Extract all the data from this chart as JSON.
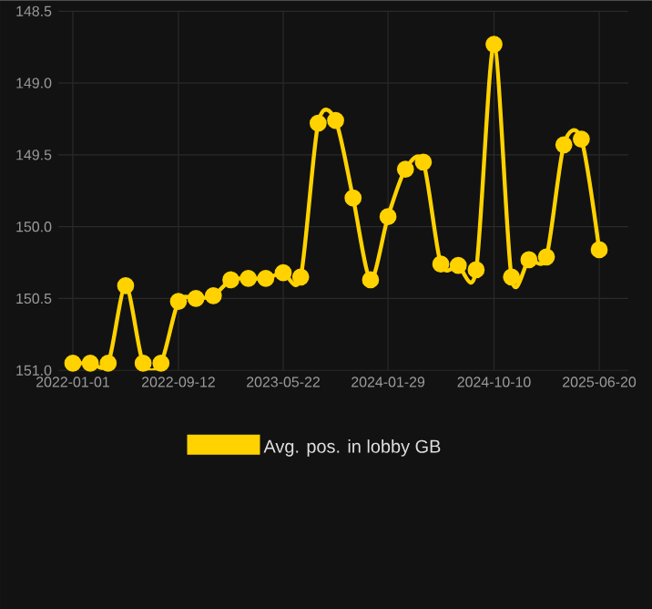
{
  "chart_data": {
    "type": "line",
    "x": [
      "2022-01-01",
      "2022-02-12",
      "2022-03-27",
      "2022-05-08",
      "2022-06-19",
      "2022-08-01",
      "2022-09-12",
      "2022-10-24",
      "2022-12-05",
      "2023-01-16",
      "2023-02-27",
      "2023-04-10",
      "2023-05-22",
      "2023-07-03",
      "2023-08-14",
      "2023-09-25",
      "2023-11-06",
      "2023-12-18",
      "2024-01-29",
      "2024-03-11",
      "2024-04-23",
      "2024-06-04",
      "2024-07-16",
      "2024-08-28",
      "2024-10-10",
      "2024-11-21",
      "2025-01-02",
      "2025-02-13",
      "2025-03-27",
      "2025-05-08",
      "2025-06-20"
    ],
    "series": [
      {
        "name": "Avg. pos. in lobby GB",
        "color": "#ffd200",
        "values": [
          150.95,
          150.95,
          150.95,
          150.41,
          150.95,
          150.95,
          150.52,
          150.5,
          150.48,
          150.37,
          150.36,
          150.36,
          150.32,
          150.35,
          149.28,
          149.26,
          149.8,
          150.37,
          149.93,
          149.6,
          149.55,
          150.26,
          150.27,
          150.3,
          148.73,
          150.35,
          150.23,
          150.21,
          149.43,
          149.39,
          150.16
        ]
      }
    ],
    "xlim": [
      "2021-11-27",
      "2025-08-29"
    ],
    "xticks": [
      "2022-01-01",
      "2022-09-12",
      "2023-05-22",
      "2024-01-29",
      "2024-10-10",
      "2025-06-20"
    ],
    "ylim": [
      151.0,
      148.5
    ],
    "yticks": [
      148.5,
      {
        "value": 149.0,
        "label": "149.0"
      },
      149.5,
      {
        "value": 150.0,
        "label": "150.0"
      },
      150.5,
      {
        "value": 151.0,
        "label": "151.0"
      }
    ],
    "grid": true,
    "legend": "bottom",
    "marker": "circle",
    "line_style": "solid"
  }
}
